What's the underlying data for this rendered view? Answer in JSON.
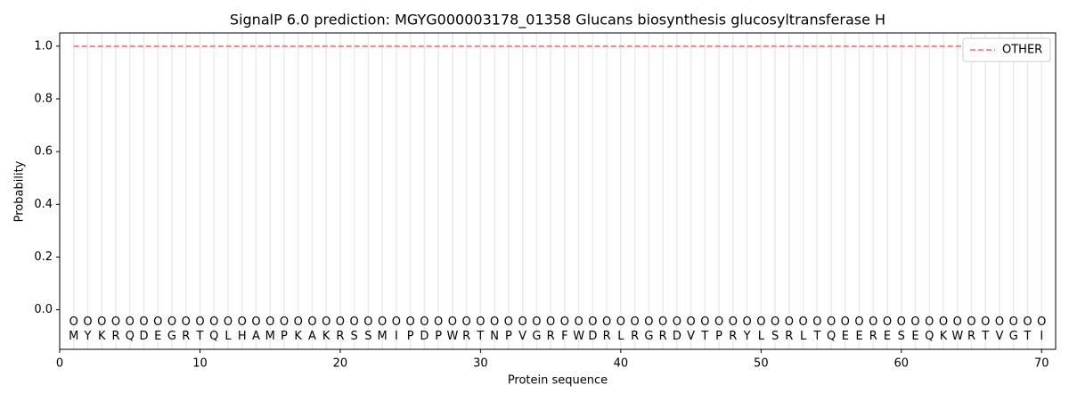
{
  "chart_data": {
    "type": "line",
    "title": "SignalP 6.0 prediction: MGYG000003178_01358 Glucans biosynthesis glucosyltransferase H",
    "xlabel": "Protein sequence",
    "ylabel": "Probability",
    "x": [
      1,
      2,
      3,
      4,
      5,
      6,
      7,
      8,
      9,
      10,
      11,
      12,
      13,
      14,
      15,
      16,
      17,
      18,
      19,
      20,
      21,
      22,
      23,
      24,
      25,
      26,
      27,
      28,
      29,
      30,
      31,
      32,
      33,
      34,
      35,
      36,
      37,
      38,
      39,
      40,
      41,
      42,
      43,
      44,
      45,
      46,
      47,
      48,
      49,
      50,
      51,
      52,
      53,
      54,
      55,
      56,
      57,
      58,
      59,
      60,
      61,
      62,
      63,
      64,
      65,
      66,
      67,
      68,
      69,
      70
    ],
    "residues": [
      "M",
      "Y",
      "K",
      "R",
      "Q",
      "D",
      "E",
      "G",
      "R",
      "T",
      "Q",
      "L",
      "H",
      "A",
      "M",
      "P",
      "K",
      "A",
      "K",
      "R",
      "S",
      "S",
      "M",
      "I",
      "P",
      "D",
      "P",
      "W",
      "R",
      "T",
      "N",
      "P",
      "V",
      "G",
      "R",
      "F",
      "W",
      "D",
      "R",
      "L",
      "R",
      "G",
      "R",
      "D",
      "V",
      "T",
      "P",
      "R",
      "Y",
      "L",
      "S",
      "R",
      "L",
      "T",
      "Q",
      "E",
      "E",
      "R",
      "E",
      "S",
      "E",
      "Q",
      "K",
      "W",
      "R",
      "T",
      "V",
      "G",
      "T",
      "I"
    ],
    "labels": [
      "O",
      "O",
      "O",
      "O",
      "O",
      "O",
      "O",
      "O",
      "O",
      "O",
      "O",
      "O",
      "O",
      "O",
      "O",
      "O",
      "O",
      "O",
      "O",
      "O",
      "O",
      "O",
      "O",
      "O",
      "O",
      "O",
      "O",
      "O",
      "O",
      "O",
      "O",
      "O",
      "O",
      "O",
      "O",
      "O",
      "O",
      "O",
      "O",
      "O",
      "O",
      "O",
      "O",
      "O",
      "O",
      "O",
      "O",
      "O",
      "O",
      "O",
      "O",
      "O",
      "O",
      "O",
      "O",
      "O",
      "O",
      "O",
      "O",
      "O",
      "O",
      "O",
      "O",
      "O",
      "O",
      "O",
      "O",
      "O",
      "O",
      "O"
    ],
    "series": [
      {
        "name": "OTHER",
        "color": "#ef7f7f",
        "values": [
          1,
          1,
          1,
          1,
          1,
          1,
          1,
          1,
          1,
          1,
          1,
          1,
          1,
          1,
          1,
          1,
          1,
          1,
          1,
          1,
          1,
          1,
          1,
          1,
          1,
          1,
          1,
          1,
          1,
          1,
          1,
          1,
          1,
          1,
          1,
          1,
          1,
          1,
          1,
          1,
          1,
          1,
          1,
          1,
          1,
          1,
          1,
          1,
          1,
          1,
          1,
          1,
          1,
          1,
          1,
          1,
          1,
          1,
          1,
          1,
          1,
          1,
          1,
          1,
          1,
          1,
          1,
          1,
          1,
          1
        ]
      }
    ],
    "xlim": [
      0,
      71
    ],
    "ylim": [
      -0.15,
      1.05
    ],
    "xticks": [
      0,
      10,
      20,
      30,
      40,
      50,
      60,
      70
    ],
    "yticks": [
      {
        "value": 0,
        "label": "0.0"
      },
      {
        "value": 0.2,
        "label": "0.2"
      },
      {
        "value": 0.4,
        "label": "0.4"
      },
      {
        "value": 0.6,
        "label": "0.6"
      },
      {
        "value": 0.8,
        "label": "0.8"
      },
      {
        "value": 1,
        "label": "1.0"
      }
    ],
    "legend": "upper right"
  }
}
